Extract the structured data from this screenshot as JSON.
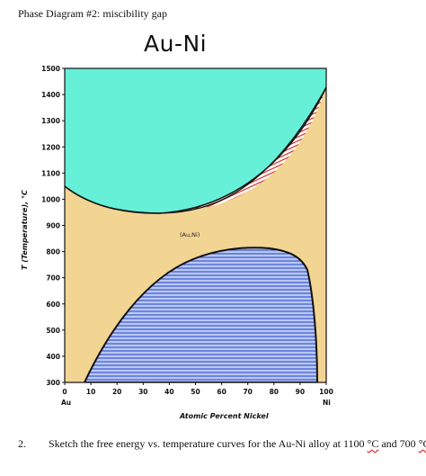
{
  "heading": "Phase Diagram #2: miscibility gap",
  "title": "Au-Ni",
  "colors": {
    "liquid": "#66f0d8",
    "solid_solution": "#f2d493",
    "two_phase": "#b8c8f2",
    "hatch_blue": "#2540c9",
    "hatch_red": "#d42b22",
    "outline": "#111111"
  },
  "diagram": {
    "xlabel": "Atomic Percent Nickel",
    "ylabel": "T (Temperature), °C",
    "x_ticks": [
      "0",
      "10",
      "20",
      "30",
      "40",
      "50",
      "60",
      "70",
      "80",
      "90",
      "100"
    ],
    "y_ticks": [
      "300",
      "400",
      "500",
      "600",
      "700",
      "800",
      "900",
      "1000",
      "1100",
      "1200",
      "1300",
      "1400",
      "1500"
    ],
    "left_component": "Au",
    "right_component": "Ni",
    "phase_label": "(Au,Ni)",
    "melting_point_au": 1064,
    "melting_point_ni": 1455,
    "solidus_min": {
      "x": 40,
      "T": 955
    },
    "miscibility_gap_max": {
      "x": 71,
      "T": 812
    },
    "xlim": [
      0,
      100
    ],
    "ylim": [
      300,
      1500
    ]
  },
  "question": {
    "number": "2.",
    "text_before": "Sketch the free energy vs. temperature curves for the Au-Ni alloy at 1100 ",
    "unit_1": "°C",
    "middle": " and 700 ",
    "unit_2": "°C"
  }
}
